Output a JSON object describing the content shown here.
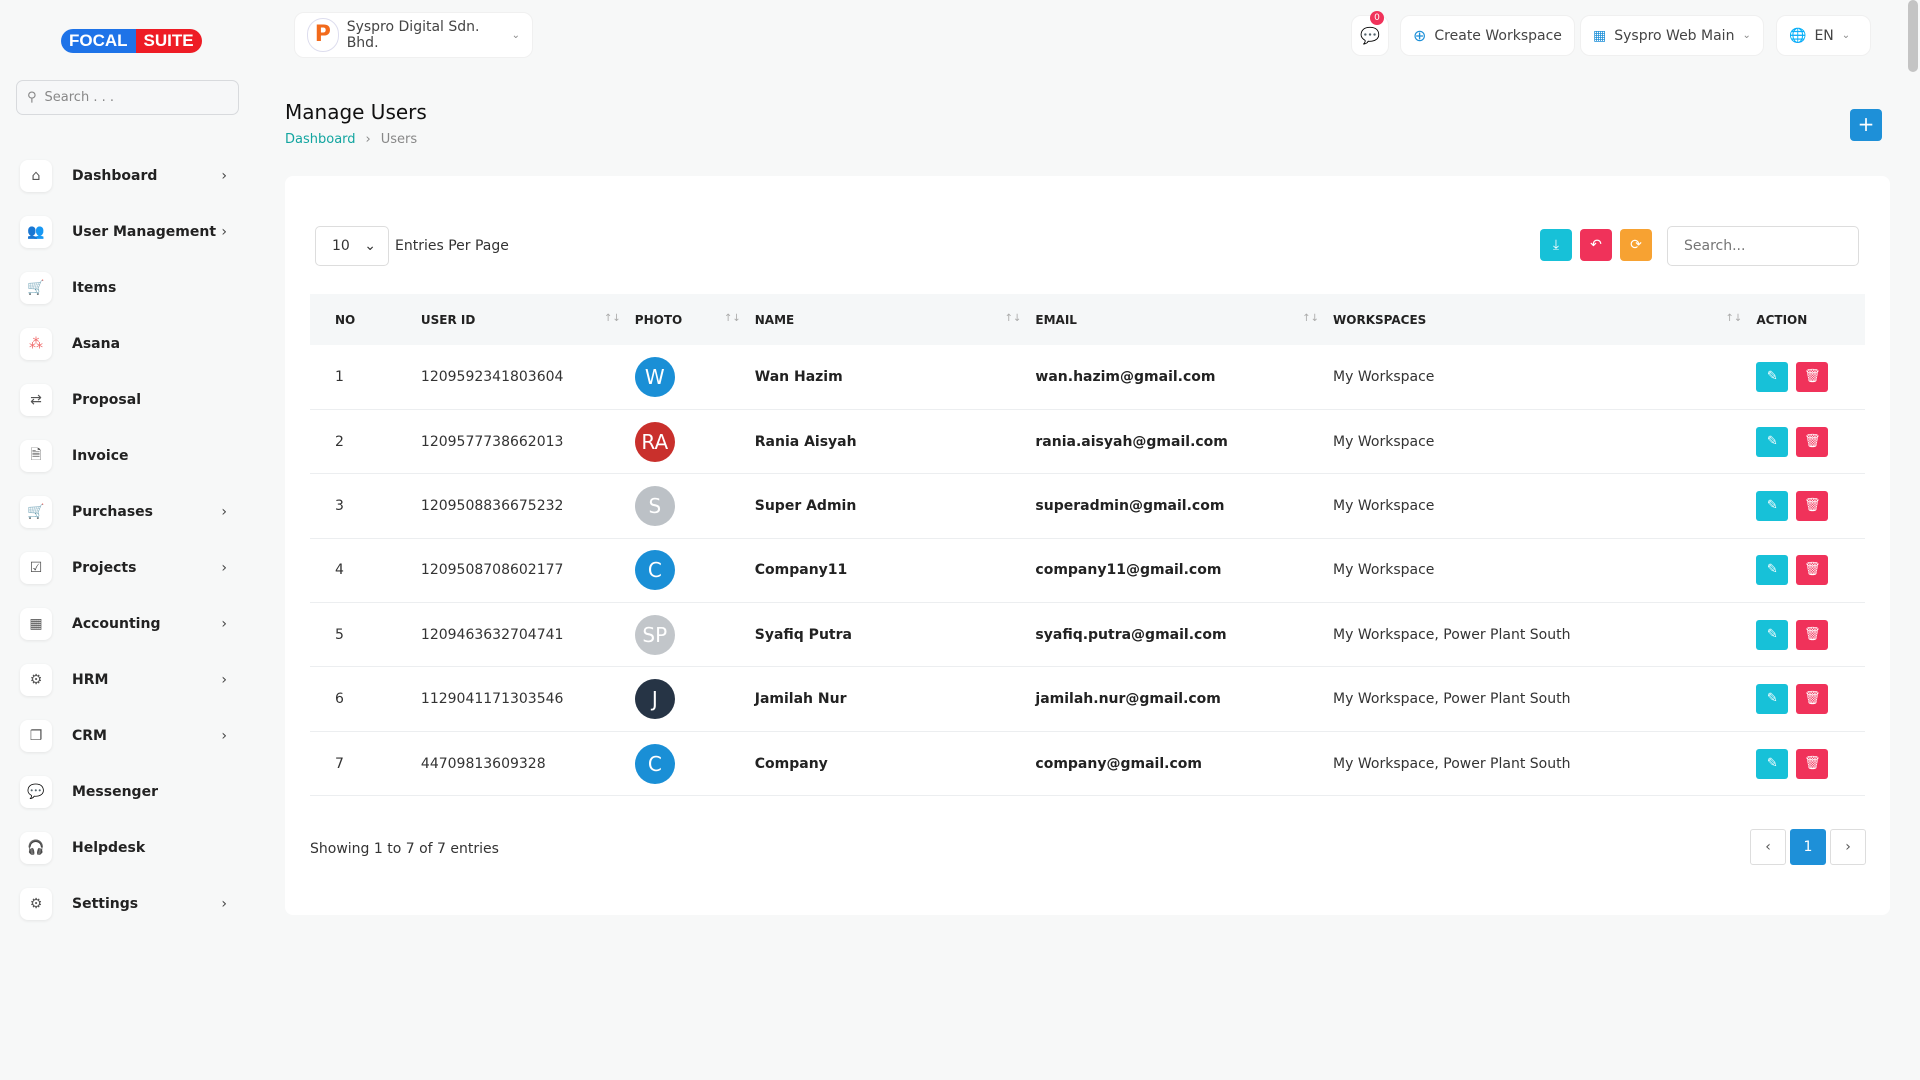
{
  "logo": {
    "part1": "FOCAL",
    "part2": "SUITE"
  },
  "sidebar": {
    "search_placeholder": "Search . . .",
    "items": [
      {
        "label": "Dashboard",
        "icon": "home-icon",
        "chevron": true
      },
      {
        "label": "User Management",
        "icon": "users-icon",
        "chevron": true
      },
      {
        "label": "Items",
        "icon": "cart-icon",
        "chevron": false
      },
      {
        "label": "Asana",
        "icon": "asana-icon",
        "chevron": false
      },
      {
        "label": "Proposal",
        "icon": "proposal-icon",
        "chevron": false
      },
      {
        "label": "Invoice",
        "icon": "invoice-icon",
        "chevron": false
      },
      {
        "label": "Purchases",
        "icon": "cart-icon",
        "chevron": true
      },
      {
        "label": "Projects",
        "icon": "check-square-icon",
        "chevron": true
      },
      {
        "label": "Accounting",
        "icon": "grid-icon",
        "chevron": true
      },
      {
        "label": "HRM",
        "icon": "hrm-icon",
        "chevron": true
      },
      {
        "label": "CRM",
        "icon": "crm-icon",
        "chevron": true
      },
      {
        "label": "Messenger",
        "icon": "chat-icon",
        "chevron": false
      },
      {
        "label": "Helpdesk",
        "icon": "headset-icon",
        "chevron": false
      },
      {
        "label": "Settings",
        "icon": "gear-icon",
        "chevron": true
      }
    ]
  },
  "header": {
    "company": "Syspro Digital Sdn. Bhd.",
    "messages_count": "0",
    "create_workspace": "Create Workspace",
    "workspace": "Syspro Web Main",
    "language": "EN"
  },
  "page": {
    "title": "Manage Users",
    "breadcrumb": [
      "Dashboard",
      "Users"
    ],
    "add_button": "+"
  },
  "table_controls": {
    "entries": "10",
    "entries_label": "Entries Per Page",
    "search_placeholder": "Search..."
  },
  "columns": [
    "NO",
    "USER ID",
    "PHOTO",
    "NAME",
    "EMAIL",
    "WORKSPACES",
    "ACTION"
  ],
  "rows": [
    {
      "no": "1",
      "user_id": "1209592341803604",
      "initials": "W",
      "color": "#1a8fd6",
      "name": "Wan Hazim",
      "email": "wan.hazim@gmail.com",
      "workspaces": "My Workspace"
    },
    {
      "no": "2",
      "user_id": "1209577738662013",
      "initials": "RA",
      "color": "#c9302c",
      "name": "Rania Aisyah",
      "email": "rania.aisyah@gmail.com",
      "workspaces": "My Workspace"
    },
    {
      "no": "3",
      "user_id": "1209508836675232",
      "initials": "S",
      "color": "#bcc1c6",
      "name": "Super Admin",
      "email": "superadmin@gmail.com",
      "workspaces": "My Workspace"
    },
    {
      "no": "4",
      "user_id": "1209508708602177",
      "initials": "C",
      "color": "#1a8fd6",
      "name": "Company11",
      "email": "company11@gmail.com",
      "workspaces": "My Workspace"
    },
    {
      "no": "5",
      "user_id": "1209463632704741",
      "initials": "SP",
      "color": "#c2c6ca",
      "name": "Syafiq Putra",
      "email": "syafiq.putra@gmail.com",
      "workspaces": "My Workspace, Power Plant South"
    },
    {
      "no": "6",
      "user_id": "1129041171303546",
      "initials": "J",
      "color": "#263445",
      "name": "Jamilah Nur",
      "email": "jamilah.nur@gmail.com",
      "workspaces": "My Workspace, Power Plant South"
    },
    {
      "no": "7",
      "user_id": "44709813609328",
      "initials": "C",
      "color": "#1a8fd6",
      "name": "Company",
      "email": "company@gmail.com",
      "workspaces": "My Workspace, Power Plant South"
    }
  ],
  "footer": {
    "showing": "Showing 1 to 7 of 7 entries",
    "current_page": "1"
  },
  "colors": {
    "teal": "#17c1d8",
    "pink": "#f0325a",
    "orange": "#f7a232",
    "blue": "#1e90d8"
  }
}
